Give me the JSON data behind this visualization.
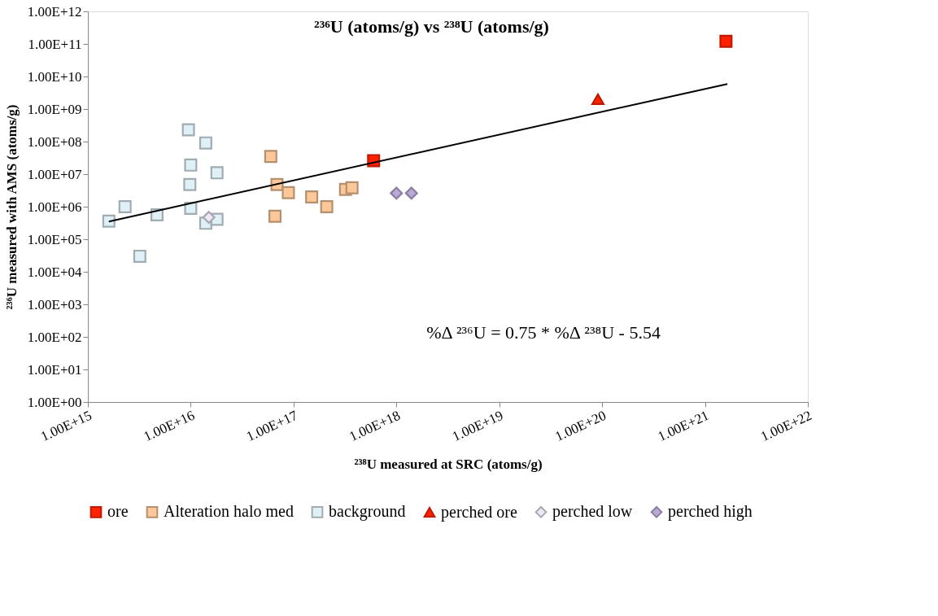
{
  "chart_data": {
    "type": "scatter",
    "title": "²³⁶U (atoms/g) vs ²³⁸U (atoms/g)",
    "xlabel": "²³⁸U measured at SRC (atoms/g)",
    "ylabel": "²³⁶U measured with AMS (atoms/g)",
    "log": "xy",
    "grid": false,
    "legend": "bottom",
    "xlim": [
      1000000000000000.0,
      1e+22
    ],
    "xticks": [
      {
        "value": 1000000000000000.0,
        "label": "1.00E+15"
      },
      {
        "value": 1e+16,
        "label": "1.00E+16"
      },
      {
        "value": 1e+17,
        "label": "1.00E+17"
      },
      {
        "value": 1e+18,
        "label": "1.00E+18"
      },
      {
        "value": 1e+19,
        "label": "1.00E+19"
      },
      {
        "value": 1e+20,
        "label": "1.00E+20"
      },
      {
        "value": 1e+21,
        "label": "1.00E+21"
      },
      {
        "value": 1e+22,
        "label": "1.00E+22"
      }
    ],
    "ylim": [
      1,
      1000000000000.0
    ],
    "yticks": [
      {
        "value": 1,
        "label": "1.00E+00"
      },
      {
        "value": 10,
        "label": "1.00E+01"
      },
      {
        "value": 100,
        "label": "1.00E+02"
      },
      {
        "value": 1000,
        "label": "1.00E+03"
      },
      {
        "value": 10000,
        "label": "1.00E+04"
      },
      {
        "value": 100000,
        "label": "1.00E+05"
      },
      {
        "value": 1000000,
        "label": "1.00E+06"
      },
      {
        "value": 10000000,
        "label": "1.00E+07"
      },
      {
        "value": 100000000,
        "label": "1.00E+08"
      },
      {
        "value": 1000000000,
        "label": "1.00E+09"
      },
      {
        "value": 10000000000,
        "label": "1.00E+10"
      },
      {
        "value": 100000000000,
        "label": "1.00E+11"
      },
      {
        "value": 1000000000000,
        "label": "1.00E+12"
      }
    ],
    "annotations": [
      "%Δ ²³⁶U = 0.75 * %Δ ²³⁸U  - 5.54"
    ],
    "series": [
      {
        "name": "ore",
        "marker": "square",
        "color": "#ff2200",
        "x": [
          6e+17,
          1.6e+21
        ],
        "values": [
          26000000.0,
          120000000000.0
        ]
      },
      {
        "name": "Alteration halo med",
        "marker": "square",
        "color": "#fcc89a",
        "x": [
          6e+16,
          6.9e+16,
          8.9e+16,
          1.5e+17,
          2.1e+17,
          6.6e+16,
          3.2e+17,
          3.7e+17
        ],
        "values": [
          35000000.0,
          4800000.0,
          2700000.0,
          2000000.0,
          1000000.0,
          510000.0,
          3400000.0,
          3800000.0
        ]
      },
      {
        "name": "background",
        "marker": "square",
        "color": "#dff0f7",
        "x": [
          9500000000000000.0,
          1.4e+16,
          1e+16,
          1.8e+16,
          9800000000000000.0,
          2300000000000000.0,
          1600000000000000.0,
          4700000000000000.0,
          1e+16,
          1.4e+16,
          1.8e+16,
          3200000000000000.0
        ],
        "values": [
          230000000.0,
          91000000.0,
          19000000.0,
          11000000.0,
          4800000.0,
          1000000.0,
          360000.0,
          560000.0,
          890000.0,
          310000.0,
          410000.0,
          30000.0
        ]
      },
      {
        "name": "perched ore",
        "marker": "triangle",
        "color": "#ff2200",
        "x": [
          9.1e+19
        ],
        "values": [
          2000000000.0
        ]
      },
      {
        "name": "perched low",
        "marker": "diamond",
        "color": "#ede7f6",
        "x": [
          1.5e+16
        ],
        "values": [
          470000.0
        ]
      },
      {
        "name": "perched high",
        "marker": "diamond",
        "color": "#b9a9d6",
        "x": [
          1e+18,
          1.4e+18
        ],
        "values": [
          2600000.0,
          2600000.0
        ]
      },
      {
        "type": "line",
        "marker": "none",
        "line_style": "solid",
        "color": "#000000",
        "x": [
          1600000000000000.0,
          1.65e+21
        ],
        "values": [
          350000.0,
          5900000000.0
        ]
      }
    ]
  }
}
